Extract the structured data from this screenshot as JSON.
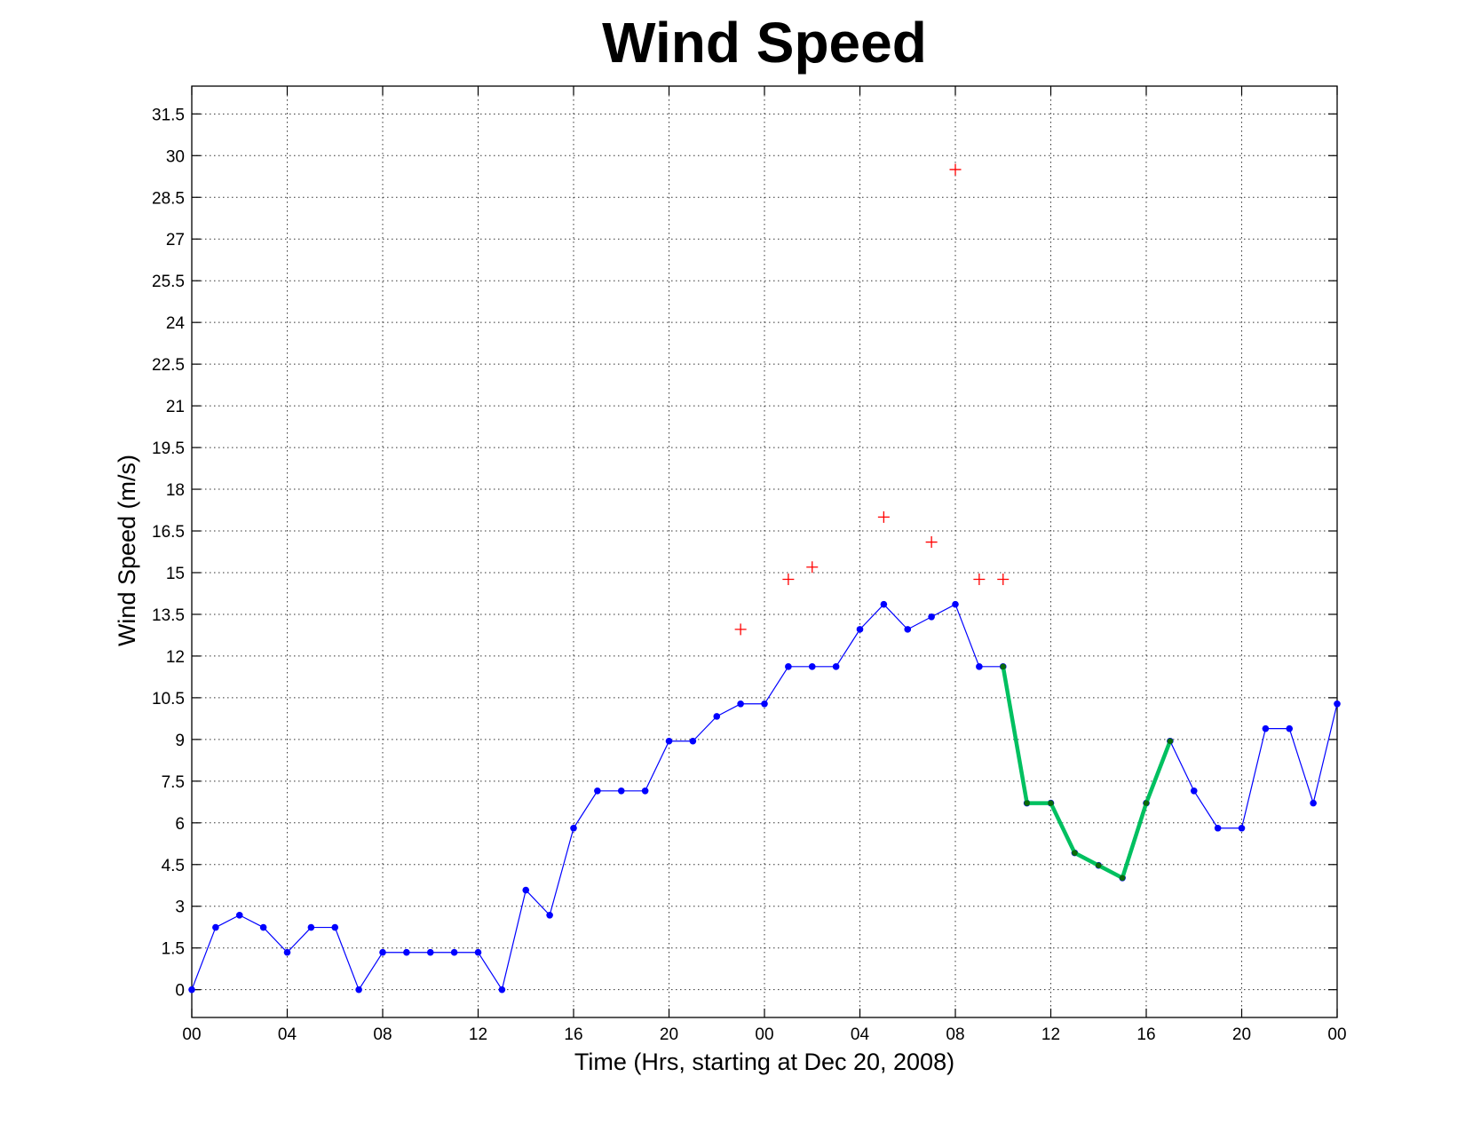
{
  "chart_data": {
    "type": "line",
    "title": "Wind Speed",
    "xlabel": "Time (Hrs, starting at Dec 20, 2008)",
    "ylabel": "Wind Speed (m/s)",
    "xlim": [
      0,
      48
    ],
    "ylim": [
      -1,
      32.5
    ],
    "grid": true,
    "x_ticks": [
      0,
      4,
      8,
      12,
      16,
      20,
      24,
      28,
      32,
      36,
      40,
      44,
      48
    ],
    "x_tick_labels": [
      "00",
      "04",
      "08",
      "12",
      "16",
      "20",
      "00",
      "04",
      "08",
      "12",
      "16",
      "20",
      "00"
    ],
    "y_ticks": [
      0,
      1.5,
      3,
      4.5,
      6,
      7.5,
      9,
      10.5,
      12,
      13.5,
      15,
      16.5,
      18,
      19.5,
      21,
      22.5,
      24,
      25.5,
      27,
      28.5,
      30,
      31.5
    ],
    "y_tick_labels": [
      "0",
      "1.5",
      "3",
      "4.5",
      "6",
      "7.5",
      "9",
      "10.5",
      "12",
      "13.5",
      "15",
      "16.5",
      "18",
      "19.5",
      "21",
      "22.5",
      "24",
      "25.5",
      "27",
      "28.5",
      "30",
      "31.5"
    ],
    "series": [
      {
        "color": "#0000ff",
        "style": "line-dot",
        "x": [
          0,
          1,
          2,
          3,
          4,
          5,
          6,
          7,
          8,
          9,
          10,
          11,
          12,
          13,
          14,
          15,
          16,
          17,
          18,
          19,
          20,
          21,
          22,
          23,
          24,
          25,
          26,
          27,
          28,
          29,
          30,
          31,
          32,
          33,
          34,
          35,
          36,
          37,
          38,
          39,
          40,
          41,
          42,
          43,
          44,
          45,
          46,
          47,
          48
        ],
        "y": [
          0,
          2.24,
          2.68,
          2.24,
          1.34,
          2.24,
          2.24,
          0,
          1.34,
          1.34,
          1.34,
          1.34,
          1.34,
          0,
          3.58,
          2.68,
          5.81,
          7.15,
          7.15,
          7.15,
          8.94,
          8.94,
          9.83,
          10.28,
          10.28,
          11.62,
          11.62,
          11.62,
          12.96,
          13.86,
          12.96,
          13.41,
          13.86,
          11.62,
          11.62,
          6.71,
          6.71,
          4.92,
          4.47,
          4.02,
          6.71,
          8.94,
          7.15,
          5.81,
          5.81,
          9.39,
          9.39,
          6.71,
          10.28
        ]
      },
      {
        "color": "#00c060",
        "style": "thick-line-dot",
        "x": [
          34,
          35,
          36,
          37,
          38,
          39,
          40,
          41
        ],
        "y": [
          11.62,
          6.71,
          6.71,
          4.92,
          4.47,
          4.02,
          6.71,
          8.94
        ]
      },
      {
        "color": "#ff0000",
        "style": "plus-marker",
        "x": [
          23,
          25,
          26,
          29,
          31,
          32,
          33,
          34
        ],
        "y": [
          12.96,
          14.76,
          15.2,
          17.0,
          16.1,
          29.5,
          14.76,
          14.76
        ]
      }
    ]
  }
}
